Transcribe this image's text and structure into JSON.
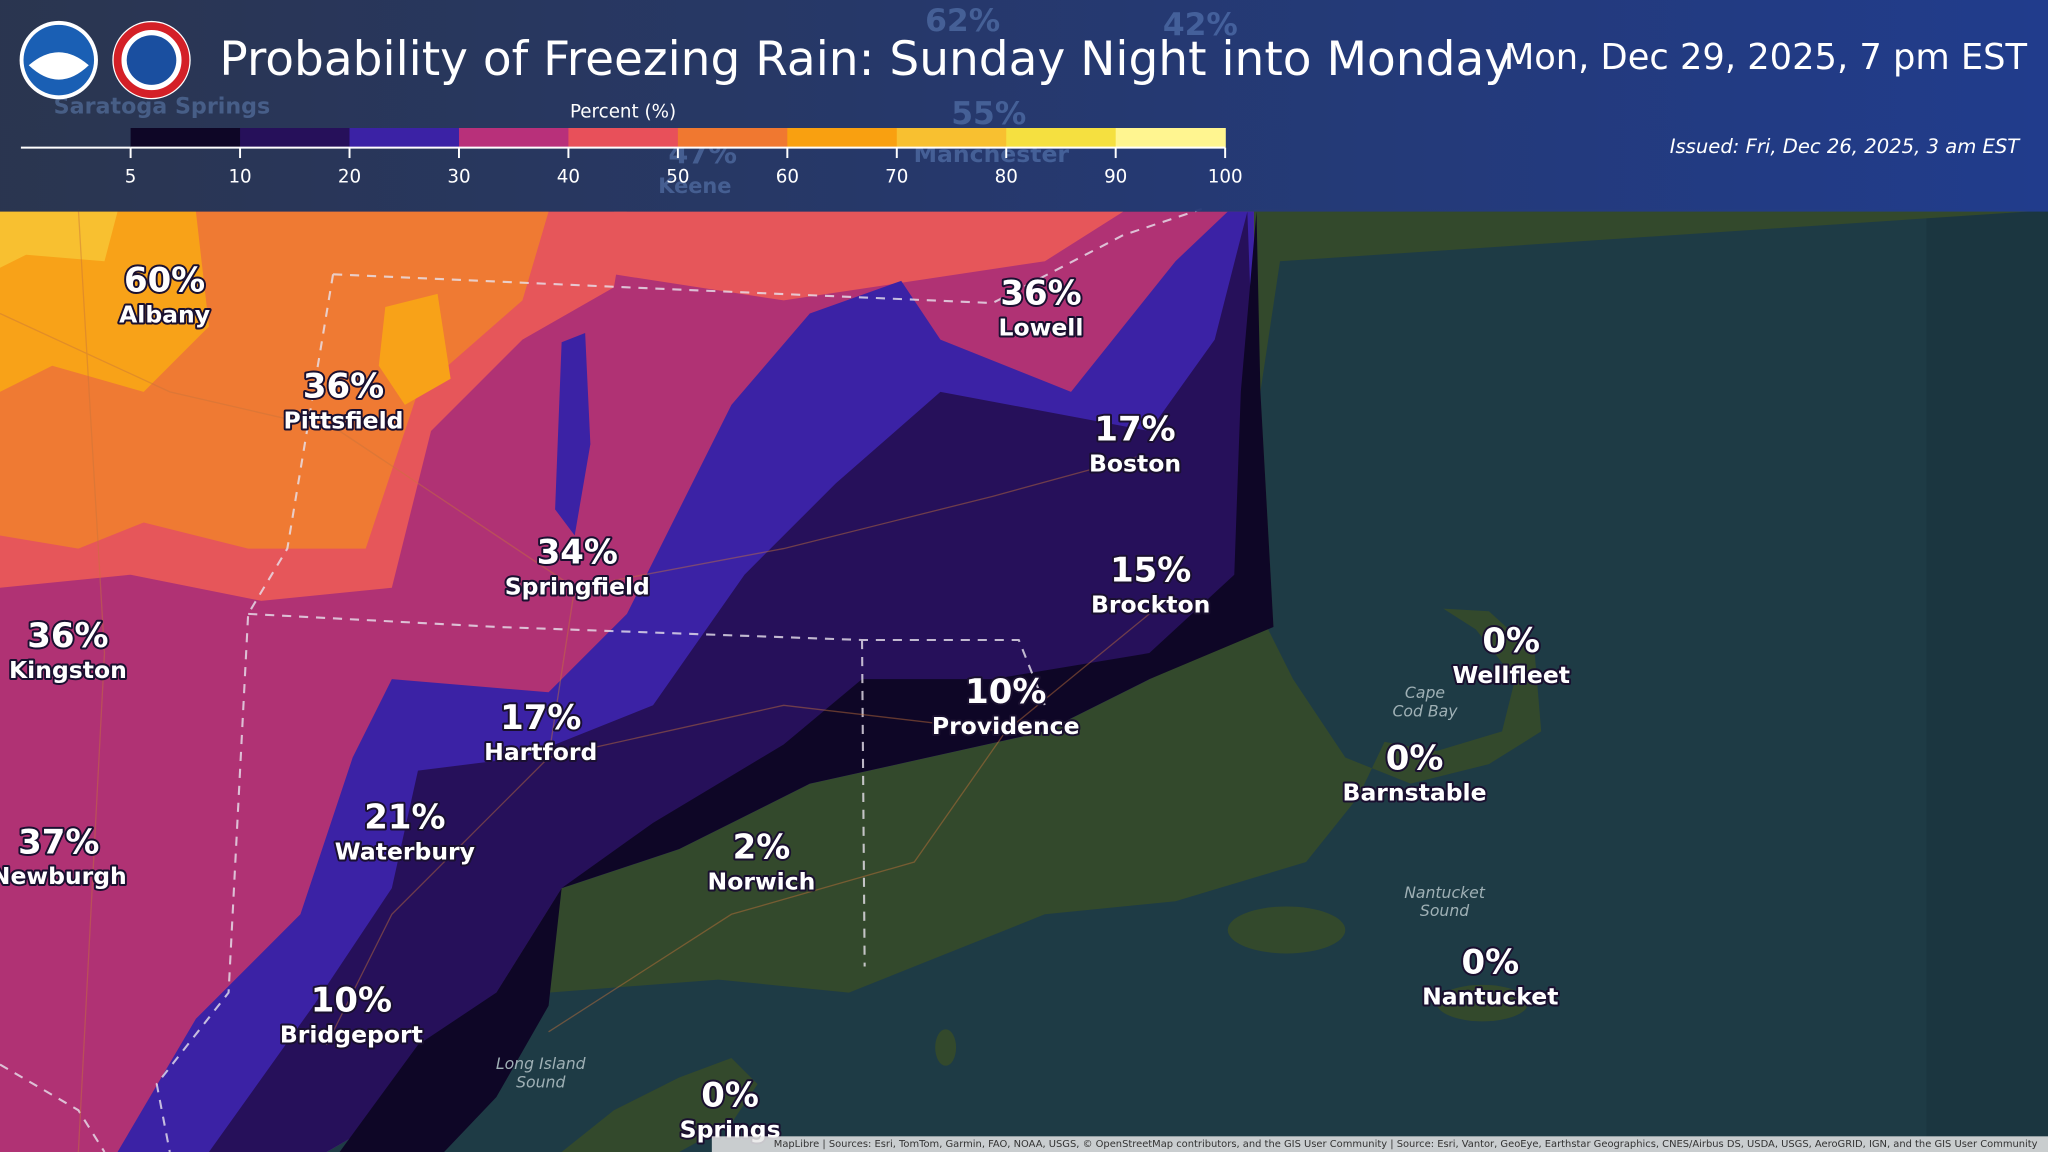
{
  "header": {
    "title": "Probability of Freezing Rain: Sunday Night into Monday",
    "valid_time": "Mon, Dec 29, 2025, 7 pm EST",
    "issued": "Issued: Fri, Dec 26, 2025, 3 am EST"
  },
  "legend": {
    "title": "Percent (%)",
    "ticks": [
      5,
      10,
      20,
      30,
      40,
      50,
      60,
      70,
      80,
      90,
      100
    ],
    "colors": [
      "#0e0626",
      "#26105a",
      "#3b22a5",
      "#b8307a",
      "#e8505a",
      "#f07830",
      "#f9a010",
      "#f8c030",
      "#f5e040",
      "#fff590"
    ]
  },
  "cities": [
    {
      "value": "60%",
      "name": "Albany"
    },
    {
      "value": "36%",
      "name": "Pittsfield"
    },
    {
      "value": "36%",
      "name": "Lowell"
    },
    {
      "value": "17%",
      "name": "Boston"
    },
    {
      "value": "34%",
      "name": "Springfield"
    },
    {
      "value": "15%",
      "name": "Brockton"
    },
    {
      "value": "36%",
      "name": "Kingston"
    },
    {
      "value": "0%",
      "name": "Wellfleet"
    },
    {
      "value": "10%",
      "name": "Providence"
    },
    {
      "value": "17%",
      "name": "Hartford"
    },
    {
      "value": "0%",
      "name": "Barnstable"
    },
    {
      "value": "21%",
      "name": "Waterbury"
    },
    {
      "value": "2%",
      "name": "Norwich"
    },
    {
      "value": "37%",
      "name": "Newburgh"
    },
    {
      "value": "0%",
      "name": "Nantucket"
    },
    {
      "value": "10%",
      "name": "Bridgeport"
    },
    {
      "value": "0%",
      "name": "Springs"
    }
  ],
  "water_labels": [
    {
      "lines": [
        "Cape",
        "Cod Bay"
      ]
    },
    {
      "lines": [
        "Nantucket",
        "Sound"
      ]
    },
    {
      "lines": [
        "Long Island",
        "Sound"
      ]
    }
  ],
  "background_labels": [
    "62%",
    "42%",
    "55%",
    "Manchester",
    "47%",
    "Keene",
    "Saratoga Springs"
  ],
  "attribution": "MapLibre | Sources: Esri, TomTom, Garmin, FAO, NOAA, USGS, © OpenStreetMap contributors, and the GIS User Community | Source: Esri, Vantor, GeoEye, Earthstar Geographics, CNES/Airbus DS, USDA, USGS, AeroGRID, IGN, and the GIS User Community"
}
